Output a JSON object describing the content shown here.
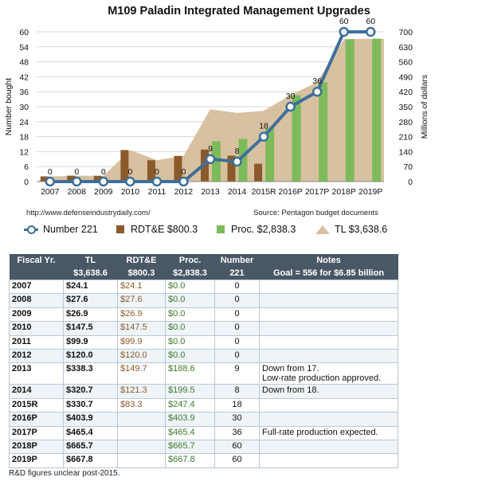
{
  "chart_data": {
    "type": "bar",
    "title": "M109 Paladin Integrated Management Upgrades",
    "categories": [
      "2007",
      "2008",
      "2009",
      "2010",
      "2011",
      "2012",
      "2013",
      "2014",
      "2015R",
      "2016P",
      "2017P",
      "2018P",
      "2019P"
    ],
    "left_axis": {
      "label": "Number bought",
      "range": [
        0,
        60
      ],
      "ticks": [
        0,
        6,
        12,
        18,
        24,
        30,
        36,
        42,
        48,
        54,
        60
      ]
    },
    "right_axis": {
      "label": "Millions of dollars",
      "range": [
        0,
        700
      ],
      "ticks": [
        0,
        70,
        140,
        210,
        280,
        350,
        420,
        490,
        560,
        630,
        700
      ]
    },
    "series": [
      {
        "name": "Number 221",
        "kind": "line",
        "axis": "left",
        "color": "#3e6f99",
        "values": [
          0,
          0,
          0,
          0,
          0,
          0,
          9,
          8,
          18,
          30,
          36,
          60,
          60
        ],
        "labels": [
          "0",
          "0",
          "0",
          "0",
          "0",
          "0",
          "9",
          "8",
          "18",
          "30",
          "36",
          "60",
          "60"
        ]
      },
      {
        "name": "RDT&E $800.3",
        "kind": "bar",
        "axis": "right",
        "color": "#8a5a2b",
        "values": [
          24.1,
          27.6,
          26.9,
          147.5,
          99.9,
          120.0,
          149.7,
          121.3,
          83.3,
          0,
          0,
          0,
          0
        ]
      },
      {
        "name": "Proc. $2,838.3",
        "kind": "bar",
        "axis": "right",
        "color": "#7dbb5a",
        "values": [
          0,
          0,
          0,
          0,
          0,
          0,
          188.6,
          199.5,
          247.4,
          403.9,
          465.4,
          665.7,
          667.8
        ]
      },
      {
        "name": "TL $3,638.6",
        "kind": "area",
        "axis": "right",
        "color": "#d8c1a0",
        "values": [
          24.1,
          27.6,
          26.9,
          147.5,
          99.9,
          120.0,
          338.3,
          320.7,
          330.7,
          403.9,
          465.4,
          665.7,
          667.8
        ]
      }
    ],
    "grid": true
  },
  "sources": {
    "left": "http://www.defenseindustrydaily.com/",
    "right": "Source: Pentagon budget documents"
  },
  "table": {
    "headers_top": [
      "Fiscal Yr.",
      "TL",
      "RDT&E",
      "Proc.",
      "Number",
      "Notes"
    ],
    "headers_bottom": [
      "",
      "$3,638.6",
      "$800.3",
      "$2,838.3",
      "221",
      "Goal = 556 for $6.85 billion"
    ],
    "rows": [
      {
        "yr": "2007",
        "tl": "$24.1",
        "rdte": "$24.1",
        "proc": "$0.0",
        "num": "0",
        "n1": "",
        "n2": ""
      },
      {
        "yr": "2008",
        "tl": "$27.6",
        "rdte": "$27.6",
        "proc": "$0.0",
        "num": "0",
        "n1": "",
        "n2": ""
      },
      {
        "yr": "2009",
        "tl": "$26.9",
        "rdte": "$26.9",
        "proc": "$0.0",
        "num": "0",
        "n1": "",
        "n2": ""
      },
      {
        "yr": "2010",
        "tl": "$147.5",
        "rdte": "$147.5",
        "proc": "$0.0",
        "num": "0",
        "n1": "",
        "n2": ""
      },
      {
        "yr": "2011",
        "tl": "$99.9",
        "rdte": "$99.9",
        "proc": "$0.0",
        "num": "0",
        "n1": "",
        "n2": ""
      },
      {
        "yr": "2012",
        "tl": "$120.0",
        "rdte": "$120.0",
        "proc": "$0.0",
        "num": "0",
        "n1": "",
        "n2": ""
      },
      {
        "yr": "2013",
        "tl": "$338.3",
        "rdte": "$149.7",
        "proc": "$188.6",
        "num": "9",
        "n1": "Down from 17.",
        "n2": "Low-rate production approved."
      },
      {
        "yr": "2014",
        "tl": "$320.7",
        "rdte": "$121.3",
        "proc": "$199.5",
        "num": "8",
        "n1": "Down from 18.",
        "n2": ""
      },
      {
        "yr": "2015R",
        "tl": "$330.7",
        "rdte": "$83.3",
        "proc": "$247.4",
        "num": "18",
        "n1": "",
        "n2": ""
      },
      {
        "yr": "2016P",
        "tl": "$403.9",
        "rdte": "",
        "proc": "$403.9",
        "num": "30",
        "n1": "",
        "n2": ""
      },
      {
        "yr": "2017P",
        "tl": "$465.4",
        "rdte": "",
        "proc": "$465.4",
        "num": "36",
        "n1": "Full-rate production expected.",
        "n2": ""
      },
      {
        "yr": "2018P",
        "tl": "$665.7",
        "rdte": "",
        "proc": "$665.7",
        "num": "60",
        "n1": "",
        "n2": ""
      },
      {
        "yr": "2019P",
        "tl": "$667.8",
        "rdte": "",
        "proc": "$667.8",
        "num": "60",
        "n1": "",
        "n2": ""
      }
    ]
  },
  "footnote": "R&D figures unclear post-2015."
}
